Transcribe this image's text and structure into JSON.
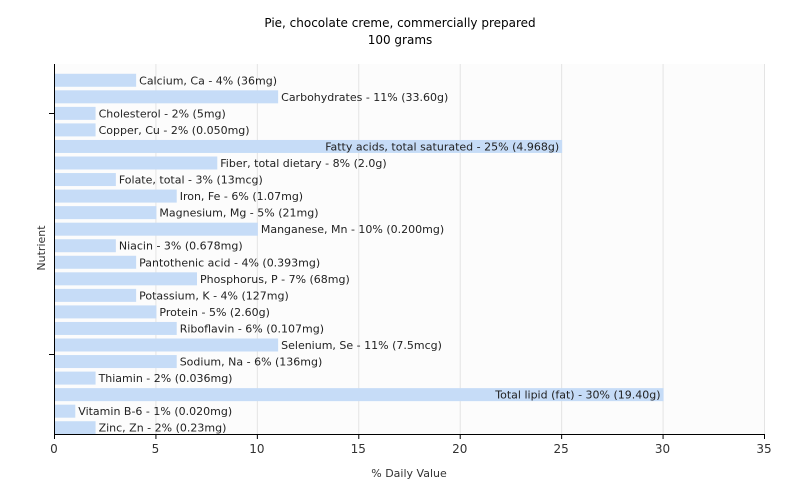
{
  "chart_data": {
    "type": "bar",
    "orientation": "horizontal",
    "title": "Pie, chocolate creme, commercially prepared",
    "subtitle": "100 grams",
    "xlabel": "% Daily Value",
    "ylabel": "Nutrient",
    "xlim": [
      0,
      35
    ],
    "xticks": [
      0,
      5,
      10,
      15,
      20,
      25,
      30,
      35
    ],
    "grid": true,
    "legend": "none",
    "bar_color": "#c6dcf7",
    "categories": [
      "Calcium, Ca",
      "Carbohydrates",
      "Cholesterol",
      "Copper, Cu",
      "Fatty acids, total saturated",
      "Fiber, total dietary",
      "Folate, total",
      "Iron, Fe",
      "Magnesium, Mg",
      "Manganese, Mn",
      "Niacin",
      "Pantothenic acid",
      "Phosphorus, P",
      "Potassium, K",
      "Protein",
      "Riboflavin",
      "Selenium, Se",
      "Sodium, Na",
      "Thiamin",
      "Total lipid (fat)",
      "Vitamin B-6",
      "Zinc, Zn"
    ],
    "values": [
      4,
      11,
      2,
      2,
      25,
      8,
      3,
      6,
      5,
      10,
      3,
      4,
      7,
      4,
      5,
      6,
      11,
      6,
      2,
      30,
      1,
      2
    ],
    "bar_labels": [
      "Calcium, Ca - 4% (36mg)",
      "Carbohydrates - 11% (33.60g)",
      "Cholesterol - 2% (5mg)",
      "Copper, Cu - 2% (0.050mg)",
      "Fatty acids, total saturated - 25% (4.968g)",
      "Fiber, total dietary - 8% (2.0g)",
      "Folate, total - 3% (13mcg)",
      "Iron, Fe - 6% (1.07mg)",
      "Magnesium, Mg - 5% (21mg)",
      "Manganese, Mn - 10% (0.200mg)",
      "Niacin - 3% (0.678mg)",
      "Pantothenic acid - 4% (0.393mg)",
      "Phosphorus, P - 7% (68mg)",
      "Potassium, K - 4% (127mg)",
      "Protein - 5% (2.60g)",
      "Riboflavin - 6% (0.107mg)",
      "Selenium, Se - 11% (7.5mcg)",
      "Sodium, Na - 6% (136mg)",
      "Thiamin - 2% (0.036mg)",
      "Total lipid (fat) - 30% (19.40g)",
      "Vitamin B-6 - 1% (0.020mg)",
      "Zinc, Zn - 2% (0.23mg)"
    ]
  }
}
